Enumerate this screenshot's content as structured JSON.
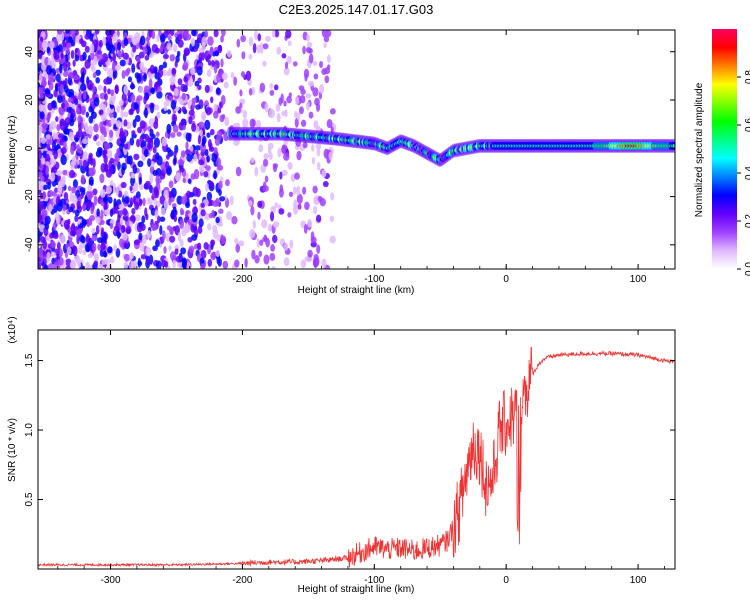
{
  "title": "C2E3.2025.147.01.17.G03",
  "chart_data": [
    {
      "type": "heatmap",
      "xlabel": "Height of straight line (km)",
      "ylabel": "Frequency (Hz)",
      "xlim": [
        -355,
        128
      ],
      "ylim": [
        -50,
        49
      ],
      "xticks": [
        -300,
        -200,
        -100,
        0,
        100
      ],
      "yticks": [
        -40,
        -20,
        0,
        20,
        40
      ],
      "grid": false,
      "colorbar": {
        "label": "Normalized spectral amplitude",
        "range": [
          0,
          1
        ],
        "ticks": [
          "0.0",
          "0.2",
          "0.4",
          "0.6",
          "0.8"
        ],
        "colors": [
          "#ffffff",
          "#e0b8ff",
          "#a040ff",
          "#6000ff",
          "#0000ff",
          "#0080ff",
          "#00ffff",
          "#00ff80",
          "#00ff00",
          "#80ff00",
          "#ffff00",
          "#ff8000",
          "#ff0000",
          "#ff0060"
        ]
      },
      "ridge": {
        "x": [
          -210,
          -190,
          -170,
          -150,
          -130,
          -115,
          -100,
          -90,
          -80,
          -70,
          -60,
          -50,
          -45,
          -40,
          -30,
          -20,
          -10,
          0,
          20,
          40,
          60,
          80,
          100,
          110,
          120,
          128
        ],
        "y": [
          6,
          6,
          6,
          5,
          4,
          3,
          2,
          0,
          3,
          1,
          -2,
          -5,
          -3,
          -1,
          0,
          1,
          1,
          1,
          1,
          1,
          1,
          1,
          1,
          1,
          1,
          1
        ]
      }
    },
    {
      "type": "line",
      "xlabel": "Height of straight line (km)",
      "ylabel": "SNR (10 * v/v)",
      "exponent": "(x10⁴)",
      "xlim": [
        -355,
        128
      ],
      "ylim": [
        0,
        1.72
      ],
      "xticks": [
        -300,
        -200,
        -100,
        0,
        100
      ],
      "yticks": [
        0.5,
        1.0,
        1.5
      ],
      "grid": false,
      "color": "#ee3333",
      "series": [
        {
          "x": [
            -355,
            -300,
            -250,
            -200,
            -180,
            -160,
            -140,
            -120,
            -110,
            -100,
            -90,
            -80,
            -70,
            -60,
            -50,
            -45,
            -40,
            -35,
            -30,
            -25,
            -20,
            -15,
            -10,
            -5,
            0,
            5,
            10,
            15,
            20,
            25,
            30,
            40,
            60,
            80,
            100,
            110,
            120,
            128
          ],
          "y": [
            0.03,
            0.03,
            0.03,
            0.04,
            0.05,
            0.05,
            0.06,
            0.08,
            0.12,
            0.16,
            0.14,
            0.15,
            0.13,
            0.15,
            0.17,
            0.2,
            0.3,
            0.45,
            0.7,
            0.9,
            0.85,
            0.6,
            0.65,
            1.0,
            1.05,
            1.1,
            1.15,
            1.3,
            1.4,
            1.48,
            1.52,
            1.54,
            1.55,
            1.55,
            1.54,
            1.52,
            1.5,
            1.49
          ]
        }
      ]
    }
  ]
}
